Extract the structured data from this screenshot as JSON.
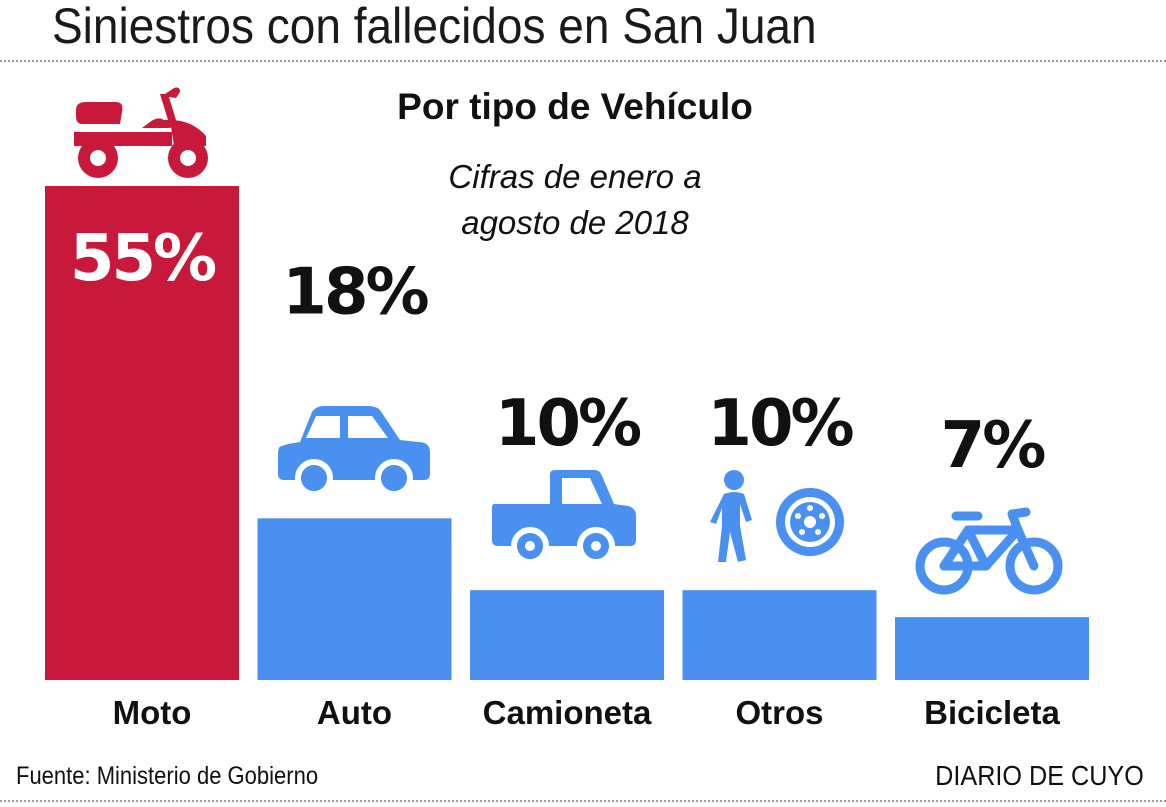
{
  "header": {
    "title": "Siniestros con fallecidos en San Juan",
    "subtitle": "Por tipo de Vehículo",
    "note_line1": "Cifras de enero a",
    "note_line2": "agosto de 2018"
  },
  "footer": {
    "source": "Fuente: Ministerio de Gobierno",
    "brand": "DIARIO DE CUYO"
  },
  "colors": {
    "highlight": "#c8193a",
    "bar": "#4a90f0",
    "text": "#111111"
  },
  "chart_data": {
    "type": "bar",
    "categories": [
      "Moto",
      "Auto",
      "Camioneta",
      "Otros",
      "Bicicleta"
    ],
    "values": [
      55,
      18,
      10,
      10,
      7
    ],
    "value_labels": [
      "55%",
      "18%",
      "10%",
      "10%",
      "7%"
    ],
    "unit": "%",
    "icons": [
      "scooter-icon",
      "car-icon",
      "pickup-truck-icon",
      "pedestrian-and-tire-icon",
      "bicycle-icon"
    ],
    "ylim": [
      0,
      55
    ],
    "grid": false,
    "legend": "none"
  }
}
